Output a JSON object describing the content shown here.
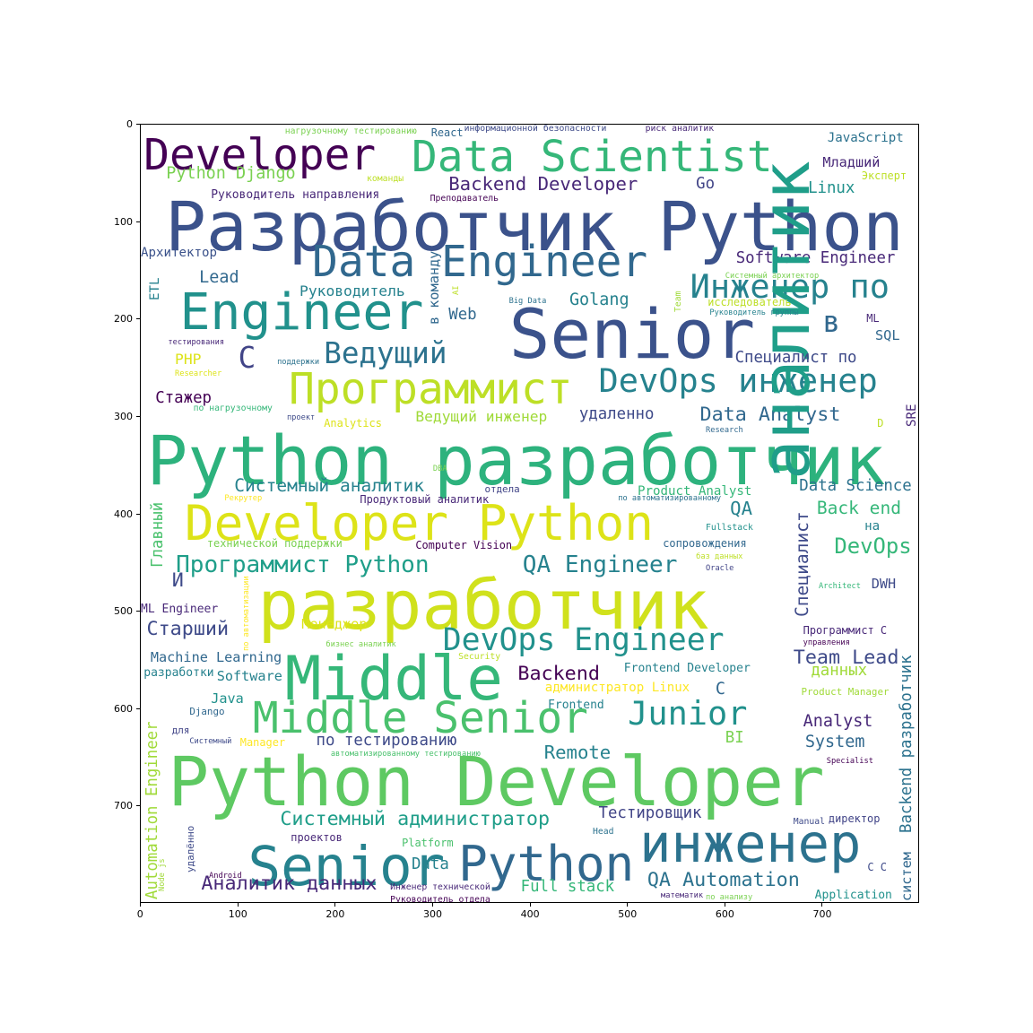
{
  "chart_data": {
    "type": "wordcloud",
    "xlim": [
      0,
      800
    ],
    "ylim": [
      800,
      0
    ],
    "x_ticks": [
      0,
      100,
      200,
      300,
      400,
      500,
      600,
      700
    ],
    "y_ticks": [
      0,
      100,
      200,
      300,
      400,
      500,
      600,
      700
    ],
    "palette": "viridis",
    "words": [
      {
        "text": "Developer",
        "x": 3,
        "y": 10,
        "size": 44,
        "color": "#440154"
      },
      {
        "text": "Data Scientist",
        "x": 278,
        "y": 12,
        "size": 44,
        "color": "#35b779"
      },
      {
        "text": "Python Django",
        "x": 26,
        "y": 42,
        "size": 17,
        "color": "#7ad151"
      },
      {
        "text": "Backend Developer",
        "x": 316,
        "y": 52,
        "size": 19,
        "color": "#482878"
      },
      {
        "text": "Руководитель направления",
        "x": 72,
        "y": 66,
        "size": 12,
        "color": "#482878"
      },
      {
        "text": "Разработчик Python",
        "x": 25,
        "y": 70,
        "size": 70,
        "color": "#3b528b"
      },
      {
        "text": "Архитектор",
        "x": 0,
        "y": 125,
        "size": 13,
        "color": "#3b528b"
      },
      {
        "text": "Data Engineer",
        "x": 176,
        "y": 120,
        "size": 44,
        "color": "#31688e"
      },
      {
        "text": "Lead",
        "x": 60,
        "y": 149,
        "size": 17,
        "color": "#31688e"
      },
      {
        "text": "Руководитель",
        "x": 163,
        "y": 164,
        "size": 15,
        "color": "#26828e"
      },
      {
        "text": "Engineer",
        "x": 40,
        "y": 168,
        "size": 52,
        "color": "#21918c"
      },
      {
        "text": "Senior",
        "x": 378,
        "y": 180,
        "size": 70,
        "color": "#3b528b"
      },
      {
        "text": "Инженер по",
        "x": 564,
        "y": 150,
        "size": 34,
        "color": "#26828e"
      },
      {
        "text": "Software Engineer",
        "x": 611,
        "y": 130,
        "size": 16,
        "color": "#482878"
      },
      {
        "text": "Ведущий",
        "x": 188,
        "y": 220,
        "size": 30,
        "color": "#2c728e"
      },
      {
        "text": "Программист",
        "x": 152,
        "y": 250,
        "size": 44,
        "color": "#bddf26"
      },
      {
        "text": "DevOps инженер",
        "x": 470,
        "y": 247,
        "size": 34,
        "color": "#26828e"
      },
      {
        "text": "Ведущий инженер",
        "x": 282,
        "y": 293,
        "size": 15,
        "color": "#a0da39"
      },
      {
        "text": "Data Analyst",
        "x": 574,
        "y": 288,
        "size": 20,
        "color": "#31688e"
      },
      {
        "text": "Python разработчик",
        "x": 6,
        "y": 310,
        "size": 70,
        "color": "#2db27d"
      },
      {
        "text": "Системный аналитик",
        "x": 96,
        "y": 362,
        "size": 18,
        "color": "#26828e"
      },
      {
        "text": "Developer Python",
        "x": 45,
        "y": 385,
        "size": 50,
        "color": "#dde318"
      },
      {
        "text": "аналитик",
        "x": 630,
        "y": 365,
        "size": 68,
        "color": "#1f9e89",
        "vertical": true
      },
      {
        "text": "Data Science",
        "x": 676,
        "y": 364,
        "size": 16,
        "color": "#2c728e"
      },
      {
        "text": "Программист Python",
        "x": 36,
        "y": 440,
        "size": 24,
        "color": "#1f9e89"
      },
      {
        "text": "QA Engineer",
        "x": 392,
        "y": 440,
        "size": 24,
        "color": "#26828e"
      },
      {
        "text": "DevOps",
        "x": 712,
        "y": 423,
        "size": 22,
        "color": "#35b779"
      },
      {
        "text": "разработчик",
        "x": 120,
        "y": 458,
        "size": 70,
        "color": "#d0e11c"
      },
      {
        "text": "Старший",
        "x": 6,
        "y": 508,
        "size": 20,
        "color": "#3e4a89"
      },
      {
        "text": "DevOps Engineer",
        "x": 310,
        "y": 514,
        "size": 32,
        "color": "#21918c"
      },
      {
        "text": "Middle",
        "x": 148,
        "y": 538,
        "size": 62,
        "color": "#35b779"
      },
      {
        "text": "Middle Senior",
        "x": 115,
        "y": 588,
        "size": 44,
        "color": "#4ac16d"
      },
      {
        "text": "Junior",
        "x": 500,
        "y": 588,
        "size": 34,
        "color": "#21918c"
      },
      {
        "text": "Backend",
        "x": 387,
        "y": 554,
        "size": 20,
        "color": "#440154"
      },
      {
        "text": "Team Lead",
        "x": 670,
        "y": 538,
        "size": 20,
        "color": "#3e4a89"
      },
      {
        "text": "Python Developer",
        "x": 28,
        "y": 640,
        "size": 70,
        "color": "#5ec962"
      },
      {
        "text": "Системный администратор",
        "x": 143,
        "y": 703,
        "size": 20,
        "color": "#1f9e89"
      },
      {
        "text": "инженер",
        "x": 512,
        "y": 712,
        "size": 54,
        "color": "#2c728e"
      },
      {
        "text": "Senior",
        "x": 110,
        "y": 735,
        "size": 56,
        "color": "#26828e"
      },
      {
        "text": "Python",
        "x": 326,
        "y": 735,
        "size": 50,
        "color": "#31688e"
      },
      {
        "text": "Аналитик данных",
        "x": 62,
        "y": 770,
        "size": 20,
        "color": "#482878"
      },
      {
        "text": "QA Automation",
        "x": 520,
        "y": 766,
        "size": 20,
        "color": "#2c728e"
      },
      {
        "text": "Full stack",
        "x": 390,
        "y": 775,
        "size": 16,
        "color": "#35b779"
      },
      {
        "text": "Automation Engineer",
        "x": 5,
        "y": 795,
        "size": 16,
        "color": "#a0da39",
        "vertical": true
      },
      {
        "text": "Backend разработчик",
        "x": 779,
        "y": 727,
        "size": 16,
        "color": "#2c728e",
        "vertical": true
      },
      {
        "text": "Тестировщик",
        "x": 470,
        "y": 700,
        "size": 16,
        "color": "#414487"
      },
      {
        "text": "по тестированию",
        "x": 180,
        "y": 625,
        "size": 16,
        "color": "#3e4a89"
      },
      {
        "text": "Remote",
        "x": 414,
        "y": 635,
        "size": 19,
        "color": "#26828e"
      },
      {
        "text": "Analyst",
        "x": 680,
        "y": 605,
        "size": 17,
        "color": "#482878"
      },
      {
        "text": "System",
        "x": 682,
        "y": 626,
        "size": 17,
        "color": "#31688e"
      },
      {
        "text": "Machine Learning",
        "x": 10,
        "y": 540,
        "size": 14,
        "color": "#31688e"
      },
      {
        "text": "Software",
        "x": 78,
        "y": 560,
        "size": 14,
        "color": "#26828e"
      },
      {
        "text": "Java",
        "x": 72,
        "y": 583,
        "size": 14,
        "color": "#21918c"
      },
      {
        "text": "ML Engineer",
        "x": 0,
        "y": 492,
        "size": 12,
        "color": "#482878"
      },
      {
        "text": "Менеджер",
        "x": 165,
        "y": 506,
        "size": 14,
        "color": "#dde318"
      },
      {
        "text": "Стажер",
        "x": 15,
        "y": 273,
        "size": 16,
        "color": "#440154"
      },
      {
        "text": "PHP",
        "x": 35,
        "y": 234,
        "size": 15,
        "color": "#dde318"
      },
      {
        "text": "C",
        "x": 100,
        "y": 225,
        "size": 30,
        "color": "#414487"
      },
      {
        "text": "в",
        "x": 700,
        "y": 188,
        "size": 30,
        "color": "#31688e"
      },
      {
        "text": "Специалист по",
        "x": 610,
        "y": 232,
        "size": 16,
        "color": "#3e4a89"
      },
      {
        "text": "SQL",
        "x": 754,
        "y": 210,
        "size": 14,
        "color": "#31688e"
      },
      {
        "text": "ML",
        "x": 745,
        "y": 194,
        "size": 11,
        "color": "#482878"
      },
      {
        "text": "удаленно",
        "x": 450,
        "y": 290,
        "size": 16,
        "color": "#3e4a89"
      },
      {
        "text": "Golang",
        "x": 440,
        "y": 172,
        "size": 17,
        "color": "#26828e"
      },
      {
        "text": "Web",
        "x": 316,
        "y": 188,
        "size": 16,
        "color": "#31688e"
      },
      {
        "text": "Go",
        "x": 570,
        "y": 53,
        "size": 16,
        "color": "#414487"
      },
      {
        "text": "Linux",
        "x": 685,
        "y": 58,
        "size": 16,
        "color": "#21918c"
      },
      {
        "text": "Младший",
        "x": 700,
        "y": 32,
        "size": 14,
        "color": "#482878"
      },
      {
        "text": "JavaScript",
        "x": 705,
        "y": 7,
        "size": 13,
        "color": "#2c728e"
      },
      {
        "text": "Эксперт",
        "x": 740,
        "y": 48,
        "size": 11,
        "color": "#bddf26"
      },
      {
        "text": "React",
        "x": 298,
        "y": 4,
        "size": 11,
        "color": "#31688e"
      },
      {
        "text": "информационной безопасности",
        "x": 332,
        "y": 0,
        "size": 9,
        "color": "#3e4a89"
      },
      {
        "text": "риск аналитик",
        "x": 518,
        "y": 0,
        "size": 9,
        "color": "#482878"
      },
      {
        "text": "нагрузочному тестированию",
        "x": 148,
        "y": 3,
        "size": 9,
        "color": "#7ad151"
      },
      {
        "text": "команды",
        "x": 232,
        "y": 52,
        "size": 9,
        "color": "#bddf26"
      },
      {
        "text": "Преподаватель",
        "x": 297,
        "y": 72,
        "size": 9,
        "color": "#440154"
      },
      {
        "text": "Системный архитектор",
        "x": 600,
        "y": 152,
        "size": 8,
        "color": "#7ad151"
      },
      {
        "text": "исследователь",
        "x": 582,
        "y": 178,
        "size": 11,
        "color": "#bddf26"
      },
      {
        "text": "Руководитель группы",
        "x": 584,
        "y": 190,
        "size": 8,
        "color": "#26828e"
      },
      {
        "text": "Big Data",
        "x": 378,
        "y": 178,
        "size": 8,
        "color": "#2c728e"
      },
      {
        "text": "тестирования",
        "x": 28,
        "y": 220,
        "size": 8,
        "color": "#482878"
      },
      {
        "text": "поддержки",
        "x": 140,
        "y": 240,
        "size": 8,
        "color": "#2c728e"
      },
      {
        "text": "Researcher",
        "x": 35,
        "y": 252,
        "size": 8,
        "color": "#dde318"
      },
      {
        "text": "по нагрузочному",
        "x": 54,
        "y": 287,
        "size": 9,
        "color": "#35b779"
      },
      {
        "text": "проект",
        "x": 150,
        "y": 297,
        "size": 8,
        "color": "#3e4a89"
      },
      {
        "text": "Analytics",
        "x": 188,
        "y": 302,
        "size": 11,
        "color": "#dde318"
      },
      {
        "text": "Research",
        "x": 580,
        "y": 310,
        "size": 8,
        "color": "#31688e"
      },
      {
        "text": "D",
        "x": 756,
        "y": 302,
        "size": 11,
        "color": "#bddf26"
      },
      {
        "text": "SRE",
        "x": 785,
        "y": 310,
        "size": 13,
        "color": "#482878",
        "vertical": true
      },
      {
        "text": "DBA",
        "x": 300,
        "y": 350,
        "size": 8,
        "color": "#7ad151"
      },
      {
        "text": "отдела",
        "x": 353,
        "y": 370,
        "size": 10,
        "color": "#414487"
      },
      {
        "text": "Product Analyst",
        "x": 510,
        "y": 370,
        "size": 13,
        "color": "#35b779"
      },
      {
        "text": "по автоматизированному",
        "x": 490,
        "y": 380,
        "size": 8,
        "color": "#2c728e"
      },
      {
        "text": "Продуктовый аналитик",
        "x": 225,
        "y": 380,
        "size": 11,
        "color": "#482878"
      },
      {
        "text": "Рекрутер",
        "x": 86,
        "y": 380,
        "size": 8,
        "color": "#fde725"
      },
      {
        "text": "Главный",
        "x": 10,
        "y": 455,
        "size": 16,
        "color": "#4ac16d",
        "vertical": true
      },
      {
        "text": "QA",
        "x": 605,
        "y": 385,
        "size": 19,
        "color": "#26828e"
      },
      {
        "text": "Back end",
        "x": 694,
        "y": 385,
        "size": 18,
        "color": "#35b779"
      },
      {
        "text": "на",
        "x": 743,
        "y": 406,
        "size": 13,
        "color": "#26828e"
      },
      {
        "text": "Специалист",
        "x": 670,
        "y": 505,
        "size": 18,
        "color": "#3e4a89",
        "vertical": true
      },
      {
        "text": "Fullstack",
        "x": 580,
        "y": 410,
        "size": 9,
        "color": "#21918c"
      },
      {
        "text": "технической поддержки",
        "x": 68,
        "y": 425,
        "size": 11,
        "color": "#7ad151"
      },
      {
        "text": "Computer Vision",
        "x": 282,
        "y": 427,
        "size": 11,
        "color": "#440154"
      },
      {
        "text": "сопровождения",
        "x": 536,
        "y": 425,
        "size": 11,
        "color": "#31688e"
      },
      {
        "text": "баз данных",
        "x": 570,
        "y": 440,
        "size": 8,
        "color": "#bddf26"
      },
      {
        "text": "Oracle",
        "x": 580,
        "y": 452,
        "size": 8,
        "color": "#414487"
      },
      {
        "text": "Architect",
        "x": 696,
        "y": 470,
        "size": 8,
        "color": "#35b779"
      },
      {
        "text": "DWH",
        "x": 750,
        "y": 465,
        "size": 14,
        "color": "#3e4a89"
      },
      {
        "text": "И",
        "x": 32,
        "y": 458,
        "size": 20,
        "color": "#3e4a89"
      },
      {
        "text": "Программист С",
        "x": 680,
        "y": 515,
        "size": 11,
        "color": "#482878"
      },
      {
        "text": "управления",
        "x": 680,
        "y": 528,
        "size": 8,
        "color": "#440154"
      },
      {
        "text": "бизнес аналитик",
        "x": 190,
        "y": 530,
        "size": 8,
        "color": "#7ad151"
      },
      {
        "text": "Security",
        "x": 326,
        "y": 542,
        "size": 9,
        "color": "#bddf26"
      },
      {
        "text": "Frontend Developer",
        "x": 496,
        "y": 552,
        "size": 12,
        "color": "#26828e"
      },
      {
        "text": "данных",
        "x": 688,
        "y": 553,
        "size": 16,
        "color": "#a0da39"
      },
      {
        "text": "разработки",
        "x": 3,
        "y": 557,
        "size": 12,
        "color": "#26828e"
      },
      {
        "text": "администратор Linux",
        "x": 415,
        "y": 572,
        "size": 13,
        "color": "#fde725"
      },
      {
        "text": "С",
        "x": 590,
        "y": 572,
        "size": 17,
        "color": "#31688e"
      },
      {
        "text": "Product Manager",
        "x": 678,
        "y": 578,
        "size": 10,
        "color": "#a0da39"
      },
      {
        "text": "Frontend",
        "x": 418,
        "y": 590,
        "size": 12,
        "color": "#26828e"
      },
      {
        "text": "Django",
        "x": 50,
        "y": 598,
        "size": 10,
        "color": "#31688e"
      },
      {
        "text": "для",
        "x": 32,
        "y": 618,
        "size": 10,
        "color": "#414487"
      },
      {
        "text": "Системный",
        "x": 50,
        "y": 630,
        "size": 8,
        "color": "#3e4a89"
      },
      {
        "text": "Manager",
        "x": 102,
        "y": 630,
        "size": 11,
        "color": "#fde725"
      },
      {
        "text": "BI",
        "x": 600,
        "y": 622,
        "size": 16,
        "color": "#7ad151"
      },
      {
        "text": "автоматизированному тестированию",
        "x": 195,
        "y": 643,
        "size": 8,
        "color": "#4ac16d"
      },
      {
        "text": "Specialist",
        "x": 704,
        "y": 650,
        "size": 8,
        "color": "#440154"
      },
      {
        "text": "директор",
        "x": 706,
        "y": 708,
        "size": 11,
        "color": "#414487"
      },
      {
        "text": "Manual",
        "x": 670,
        "y": 712,
        "size": 9,
        "color": "#3e4a89"
      },
      {
        "text": "Head",
        "x": 464,
        "y": 722,
        "size": 9,
        "color": "#2c728e"
      },
      {
        "text": "Platform",
        "x": 268,
        "y": 733,
        "size": 11,
        "color": "#4ac16d"
      },
      {
        "text": "проектов",
        "x": 154,
        "y": 727,
        "size": 11,
        "color": "#482878"
      },
      {
        "text": "удалённо",
        "x": 47,
        "y": 768,
        "size": 10,
        "color": "#3e4a89",
        "vertical": true
      },
      {
        "text": "Data",
        "x": 278,
        "y": 752,
        "size": 16,
        "color": "#26828e"
      },
      {
        "text": "C C",
        "x": 746,
        "y": 758,
        "size": 11,
        "color": "#3e4a89"
      },
      {
        "text": "систем",
        "x": 780,
        "y": 797,
        "size": 14,
        "color": "#31688e",
        "vertical": true
      },
      {
        "text": "Android",
        "x": 70,
        "y": 768,
        "size": 8,
        "color": "#440154"
      },
      {
        "text": "Node js",
        "x": 18,
        "y": 787,
        "size": 8,
        "color": "#a0da39",
        "vertical": true
      },
      {
        "text": "Инженер технической",
        "x": 256,
        "y": 779,
        "size": 9,
        "color": "#482878"
      },
      {
        "text": "Руководитель отдела",
        "x": 256,
        "y": 792,
        "size": 9,
        "color": "#440154"
      },
      {
        "text": "математик",
        "x": 534,
        "y": 788,
        "size": 8,
        "color": "#482878"
      },
      {
        "text": "по анализу",
        "x": 580,
        "y": 790,
        "size": 8,
        "color": "#7ad151"
      },
      {
        "text": "Application",
        "x": 692,
        "y": 785,
        "size": 12,
        "color": "#21918c"
      },
      {
        "text": "ETL",
        "x": 8,
        "y": 180,
        "size": 13,
        "color": "#26828e",
        "vertical": true
      },
      {
        "text": "в команду",
        "x": 295,
        "y": 205,
        "size": 14,
        "color": "#31688e",
        "vertical": true
      },
      {
        "text": "Team",
        "x": 548,
        "y": 192,
        "size": 9,
        "color": "#a0da39",
        "vertical": true
      },
      {
        "text": "AI",
        "x": 320,
        "y": 175,
        "size": 8,
        "color": "#bddf26",
        "vertical": true
      },
      {
        "text": "по автоматизации",
        "x": 105,
        "y": 540,
        "size": 8,
        "color": "#fde725",
        "vertical": true
      }
    ]
  }
}
